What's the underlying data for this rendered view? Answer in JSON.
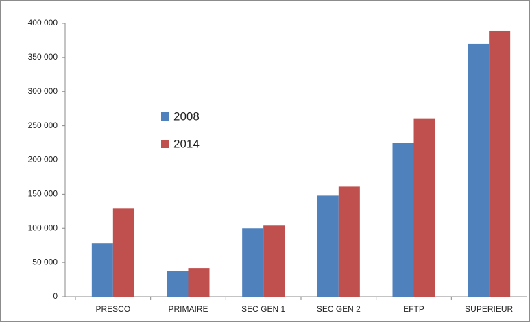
{
  "chart_data": {
    "type": "bar",
    "categories": [
      "PRESCO",
      "PRIMAIRE",
      "SEC GEN 1",
      "SEC GEN 2",
      "EFTP",
      "SUPERIEUR"
    ],
    "series": [
      {
        "name": "2008",
        "color": "#4f81bd",
        "values": [
          78000,
          38000,
          100000,
          148000,
          225000,
          370000
        ]
      },
      {
        "name": "2014",
        "color": "#c0504d",
        "values": [
          129000,
          42000,
          104000,
          161000,
          261000,
          389000
        ]
      }
    ],
    "ylim": [
      0,
      400000
    ],
    "yticks": [
      0,
      {
        "value": 50000,
        "label": "50 000"
      },
      {
        "value": 100000,
        "label": "100 000"
      },
      {
        "value": 150000,
        "label": "150 000"
      },
      {
        "value": 200000,
        "label": "200 000"
      },
      {
        "value": 250000,
        "label": "250 000"
      },
      {
        "value": 300000,
        "label": "300 000"
      },
      {
        "value": 350000,
        "label": "350 000"
      },
      {
        "value": 400000,
        "label": "400 000"
      }
    ],
    "grid": false,
    "legend": "left"
  }
}
